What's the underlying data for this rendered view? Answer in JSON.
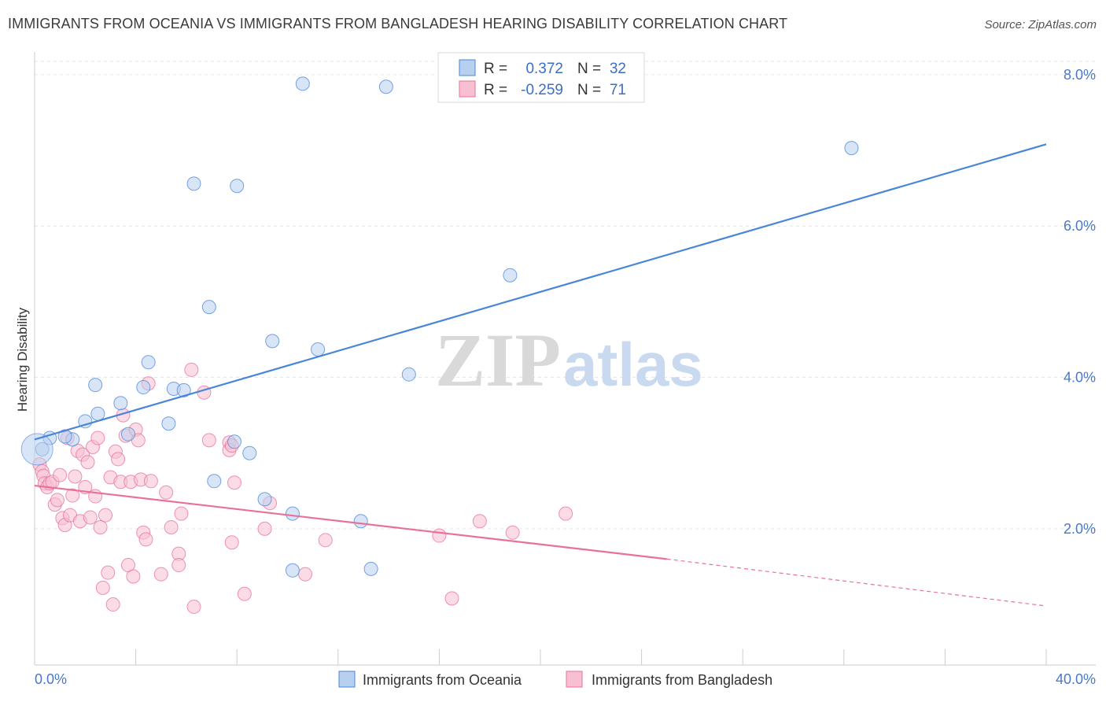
{
  "title": "IMMIGRANTS FROM OCEANIA VS IMMIGRANTS FROM BANGLADESH HEARING DISABILITY CORRELATION CHART",
  "source": "Source: ZipAtlas.com",
  "watermark": {
    "zip": "ZIP",
    "atlas": "atlas"
  },
  "legend_top": {
    "r_label": "R =",
    "n_label": "N =",
    "rows": [
      {
        "r": "0.372",
        "n": "32"
      },
      {
        "r": "-0.259",
        "n": "71"
      }
    ]
  },
  "chart_data": {
    "type": "scatter",
    "title": "IMMIGRANTS FROM OCEANIA VS IMMIGRANTS FROM BANGLADESH HEARING DISABILITY CORRELATION CHART",
    "xlabel": "",
    "ylabel": "Hearing Disability",
    "xlim": [
      0,
      40
    ],
    "ylim": [
      0.2,
      8.3
    ],
    "x_tick_labels": [
      "0.0%",
      "40.0%"
    ],
    "y_ticks": [
      2,
      4,
      6,
      8
    ],
    "y_tick_labels": [
      "2.0%",
      "4.0%",
      "6.0%",
      "8.0%"
    ],
    "grid": true,
    "legend_position": "bottom",
    "series": [
      {
        "name": "Immigrants from Oceania",
        "color": "#4a86d8",
        "fill": "#b8d0f0",
        "trend": {
          "x1": 0,
          "y1": 3.18,
          "x2": 40,
          "y2": 7.08
        },
        "points": [
          [
            0.3,
            3.05
          ],
          [
            0.6,
            3.2
          ],
          [
            1.5,
            3.18
          ],
          [
            1.2,
            3.22
          ],
          [
            2.0,
            3.42
          ],
          [
            2.5,
            3.52
          ],
          [
            3.4,
            3.66
          ],
          [
            2.4,
            3.9
          ],
          [
            3.7,
            3.25
          ],
          [
            4.3,
            3.87
          ],
          [
            4.5,
            4.2
          ],
          [
            5.3,
            3.39
          ],
          [
            5.5,
            3.85
          ],
          [
            5.9,
            3.83
          ],
          [
            6.3,
            6.56
          ],
          [
            6.9,
            4.93
          ],
          [
            7.1,
            2.63
          ],
          [
            7.9,
            3.15
          ],
          [
            8.0,
            6.53
          ],
          [
            8.5,
            3.0
          ],
          [
            9.1,
            2.39
          ],
          [
            9.4,
            4.48
          ],
          [
            10.2,
            2.2
          ],
          [
            10.6,
            7.88
          ],
          [
            10.2,
            1.45
          ],
          [
            11.2,
            4.37
          ],
          [
            12.9,
            2.1
          ],
          [
            13.3,
            1.47
          ],
          [
            13.9,
            7.84
          ],
          [
            14.8,
            4.04
          ],
          [
            18.8,
            5.35
          ],
          [
            32.3,
            7.03
          ]
        ]
      },
      {
        "name": "Immigrants from Bangladesh",
        "color": "#e8709a",
        "fill": "#f7bfd1",
        "trend": {
          "x1": 0,
          "y1": 2.57,
          "x2": 25,
          "y2": 1.6,
          "dash_x2": 40,
          "dash_y2": 0.98
        },
        "points": [
          [
            0.2,
            2.85
          ],
          [
            0.3,
            2.76
          ],
          [
            0.35,
            2.7
          ],
          [
            0.4,
            2.6
          ],
          [
            0.5,
            2.55
          ],
          [
            0.6,
            2.6
          ],
          [
            0.7,
            2.62
          ],
          [
            0.8,
            2.32
          ],
          [
            0.9,
            2.38
          ],
          [
            1.0,
            2.71
          ],
          [
            1.1,
            2.14
          ],
          [
            1.2,
            2.05
          ],
          [
            1.3,
            3.2
          ],
          [
            1.4,
            2.18
          ],
          [
            1.5,
            2.44
          ],
          [
            1.6,
            2.69
          ],
          [
            1.7,
            3.03
          ],
          [
            1.8,
            2.1
          ],
          [
            1.9,
            2.98
          ],
          [
            2.0,
            2.55
          ],
          [
            2.1,
            2.88
          ],
          [
            2.2,
            2.15
          ],
          [
            2.3,
            3.08
          ],
          [
            2.4,
            2.43
          ],
          [
            2.5,
            3.2
          ],
          [
            2.6,
            2.02
          ],
          [
            2.7,
            1.22
          ],
          [
            2.8,
            2.18
          ],
          [
            2.9,
            1.42
          ],
          [
            3.0,
            2.68
          ],
          [
            3.1,
            1.0
          ],
          [
            3.2,
            3.02
          ],
          [
            3.3,
            2.92
          ],
          [
            3.4,
            2.62
          ],
          [
            3.5,
            3.5
          ],
          [
            3.6,
            3.23
          ],
          [
            3.7,
            1.52
          ],
          [
            3.8,
            2.62
          ],
          [
            3.9,
            1.37
          ],
          [
            4.0,
            3.31
          ],
          [
            4.1,
            3.17
          ],
          [
            4.2,
            2.65
          ],
          [
            4.3,
            1.95
          ],
          [
            4.4,
            1.86
          ],
          [
            4.5,
            3.92
          ],
          [
            4.6,
            2.63
          ],
          [
            5.0,
            1.4
          ],
          [
            5.2,
            2.48
          ],
          [
            5.4,
            2.02
          ],
          [
            5.7,
            1.67
          ],
          [
            5.7,
            1.52
          ],
          [
            6.2,
            4.1
          ],
          [
            6.3,
            0.97
          ],
          [
            6.7,
            3.8
          ],
          [
            6.9,
            3.17
          ],
          [
            7.7,
            3.14
          ],
          [
            7.7,
            3.04
          ],
          [
            7.8,
            3.1
          ],
          [
            7.8,
            1.82
          ],
          [
            7.9,
            2.61
          ],
          [
            8.3,
            1.14
          ],
          [
            9.3,
            2.34
          ],
          [
            10.7,
            1.4
          ],
          [
            11.5,
            1.85
          ],
          [
            16.0,
            1.91
          ],
          [
            16.5,
            1.08
          ],
          [
            17.6,
            2.1
          ],
          [
            18.9,
            1.95
          ],
          [
            21.0,
            2.2
          ],
          [
            9.1,
            2.0
          ],
          [
            5.8,
            2.2
          ]
        ]
      }
    ]
  },
  "bottom_legend": [
    "Immigrants from Oceania",
    "Immigrants from Bangladesh"
  ]
}
